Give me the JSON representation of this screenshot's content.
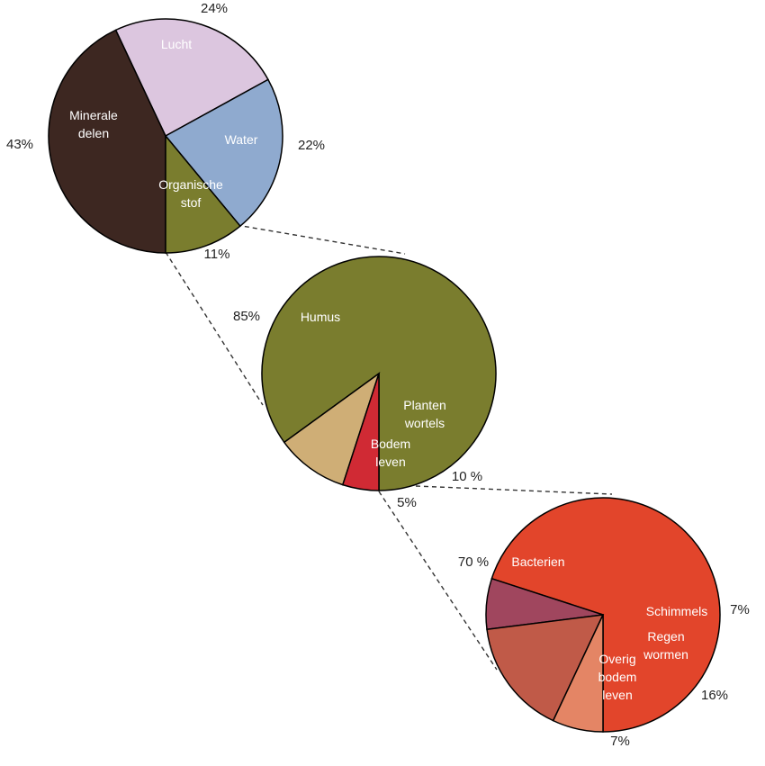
{
  "chart_data": [
    {
      "type": "pie",
      "categories": [
        "Minerale delen",
        "Lucht",
        "Water",
        "Organische stof"
      ],
      "values": [
        43,
        24,
        22,
        11
      ],
      "value_labels": [
        "43%",
        "24%",
        "22%",
        "11%"
      ],
      "colors": [
        "#3d2721",
        "#dcc6df",
        "#8faacf",
        "#7a7d2e"
      ],
      "slice_labels": [
        [
          "Minerale",
          "delen"
        ],
        [
          "Lucht"
        ],
        [
          "Water"
        ],
        [
          "Organische",
          "stof"
        ]
      ]
    },
    {
      "type": "pie",
      "categories": [
        "Humus",
        "Planten wortels",
        "Bodem leven"
      ],
      "values": [
        85,
        10,
        5
      ],
      "value_labels": [
        "85%",
        "10 %",
        "5%"
      ],
      "colors": [
        "#7a7d2e",
        "#cfae76",
        "#d02a34"
      ],
      "slice_labels": [
        [
          "Humus"
        ],
        [
          "Planten",
          "wortels"
        ],
        [
          "Bodem",
          "leven"
        ]
      ]
    },
    {
      "type": "pie",
      "categories": [
        "Bacterien",
        "Schimmels",
        "Regen wormen",
        "Overig bodem leven"
      ],
      "values": [
        70,
        7,
        16,
        7
      ],
      "value_labels": [
        "70 %",
        "7%",
        "16%",
        "7%"
      ],
      "colors": [
        "#e2452b",
        "#a0465e",
        "#c05a48",
        "#e48565"
      ],
      "slice_labels": [
        [
          "Bacterien"
        ],
        [
          "Schimmels"
        ],
        [
          "Regen",
          "wormen"
        ],
        [
          "Overig",
          "bodem",
          "leven"
        ]
      ]
    }
  ]
}
